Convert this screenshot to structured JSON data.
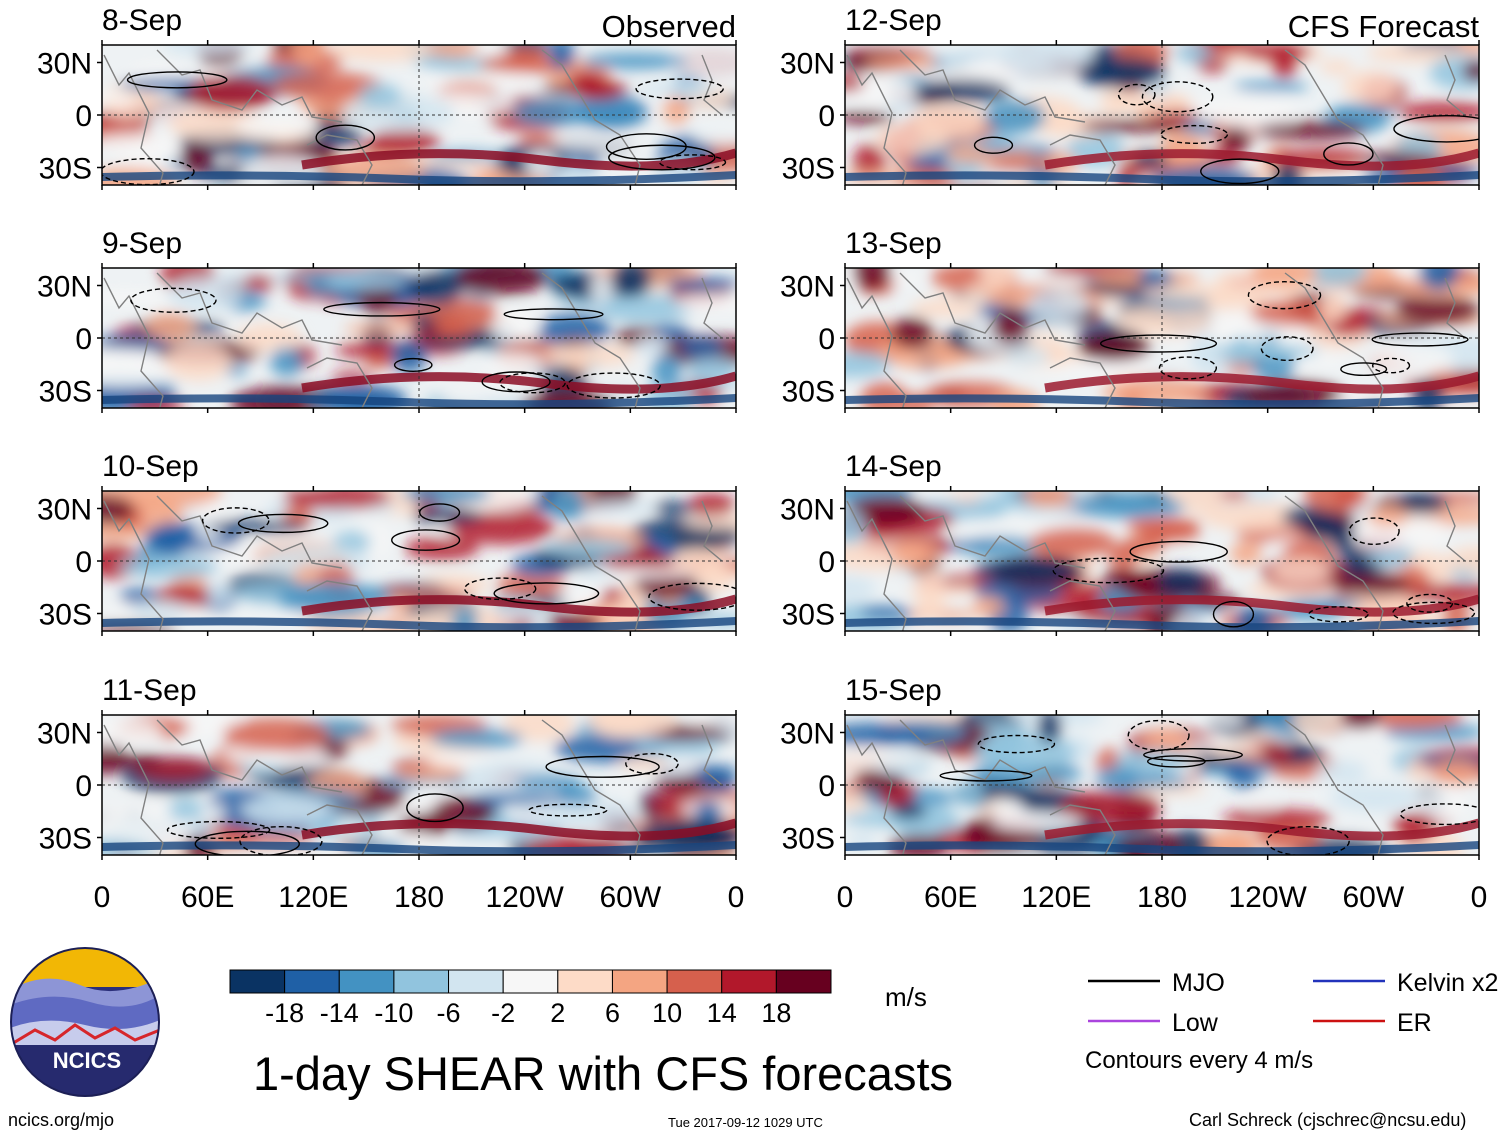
{
  "chart_data": {
    "type": "heatmap",
    "title": "1-day SHEAR with CFS forecasts",
    "units": "m/s",
    "columns": [
      {
        "label": "Observed",
        "panels": [
          "8-Sep",
          "9-Sep",
          "10-Sep",
          "11-Sep"
        ]
      },
      {
        "label": "CFS Forecast",
        "panels": [
          "12-Sep",
          "13-Sep",
          "14-Sep",
          "15-Sep"
        ]
      }
    ],
    "x_ticks": [
      {
        "lon": 0,
        "label": "0"
      },
      {
        "lon": 60,
        "label": "60E"
      },
      {
        "lon": 120,
        "label": "120E"
      },
      {
        "lon": 180,
        "label": "180"
      },
      {
        "lon": 240,
        "label": "120W"
      },
      {
        "lon": 300,
        "label": "60W"
      },
      {
        "lon": 360,
        "label": "0"
      }
    ],
    "y_ticks": [
      {
        "lat": 30,
        "label": "30N"
      },
      {
        "lat": 0,
        "label": "0"
      },
      {
        "lat": -30,
        "label": "30S"
      }
    ],
    "xlim": [
      0,
      360
    ],
    "ylim": [
      -40,
      40
    ],
    "colorbar": {
      "bounds": [
        -22,
        -18,
        -14,
        -10,
        -6,
        -2,
        2,
        6,
        10,
        14,
        18,
        22
      ],
      "labels": [
        "-18",
        "-14",
        "-10",
        "-6",
        "-2",
        "2",
        "6",
        "10",
        "14",
        "18"
      ],
      "colors": [
        "#0a3363",
        "#1f60a6",
        "#4392c2",
        "#91c4de",
        "#d2e5f0",
        "#f7f7f7",
        "#fddbc7",
        "#f4a582",
        "#d6604d",
        "#b2182b",
        "#67001f"
      ]
    },
    "legend": [
      {
        "label": "MJO",
        "color": "#000000"
      },
      {
        "label": "Kelvin x2",
        "color": "#2233bb"
      },
      {
        "label": "Low",
        "color": "#aa44dd"
      },
      {
        "label": "ER",
        "color": "#cc1111"
      }
    ],
    "contour_note": "Contours every 4 m/s"
  },
  "logo_text": "NCICS",
  "footer": {
    "url": "ncics.org/mjo",
    "timestamp": "Tue 2017-09-12 1029 UTC",
    "credit": "Carl Schreck (cjschrec@ncsu.edu)"
  }
}
